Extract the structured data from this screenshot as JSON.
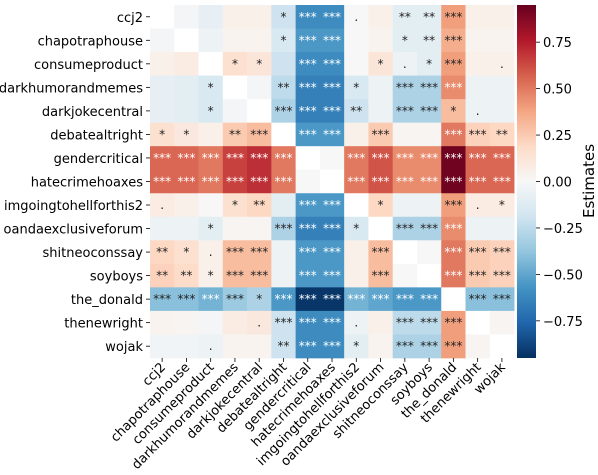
{
  "chart_data": {
    "type": "heatmap",
    "title": "",
    "xlabel": "",
    "ylabel": "",
    "rows": [
      "ccj2",
      "chapotraphouse",
      "consumeproduct",
      "darkhumorandmemes",
      "darkjokecentral",
      "debatealtright",
      "gendercritical",
      "hatecrimehoaxes",
      "imgoingtohellforthis2",
      "oandaexclusiveforum",
      "shitneoconssay",
      "soyboys",
      "the_donald",
      "thenewright",
      "wojak"
    ],
    "columns": [
      "ccj2",
      "chapotraphouse",
      "consumeproduct",
      "darkhumorandmemes",
      "darkjokecentral",
      "debatealtright",
      "gendercritical",
      "hatecrimehoaxes",
      "imgoingtohellforthis2",
      "oandaexclusiveforum",
      "shitneoconssay",
      "soyboys",
      "the_donald",
      "thenewright",
      "wojak"
    ],
    "values": [
      [
        null,
        -0.02,
        -0.08,
        0.05,
        0.05,
        -0.2,
        -0.6,
        -0.6,
        0.0,
        0.05,
        -0.1,
        -0.1,
        0.4,
        0.05,
        0.05
      ],
      [
        -0.02,
        null,
        -0.05,
        0.03,
        0.03,
        -0.15,
        -0.55,
        -0.55,
        0.0,
        0.03,
        -0.1,
        -0.1,
        0.35,
        0.03,
        0.03
      ],
      [
        0.05,
        0.08,
        null,
        0.15,
        0.12,
        -0.2,
        -0.6,
        -0.6,
        0.0,
        0.12,
        -0.05,
        -0.1,
        0.4,
        0.05,
        0.05
      ],
      [
        -0.08,
        -0.1,
        -0.15,
        null,
        -0.02,
        -0.25,
        -0.65,
        -0.65,
        -0.15,
        -0.05,
        -0.3,
        -0.3,
        0.45,
        -0.05,
        -0.05
      ],
      [
        -0.08,
        -0.1,
        -0.15,
        -0.02,
        null,
        -0.3,
        -0.65,
        -0.65,
        -0.2,
        -0.05,
        -0.3,
        -0.3,
        0.3,
        -0.05,
        -0.05
      ],
      [
        0.15,
        0.1,
        0.05,
        0.25,
        0.3,
        null,
        -0.55,
        -0.55,
        0.05,
        0.25,
        0.02,
        0.02,
        0.5,
        0.22,
        0.2
      ],
      [
        0.55,
        0.55,
        0.5,
        0.65,
        0.7,
        0.5,
        null,
        0.0,
        0.5,
        0.6,
        0.45,
        0.45,
        0.93,
        0.55,
        0.55
      ],
      [
        0.55,
        0.55,
        0.5,
        0.65,
        0.7,
        0.5,
        0.0,
        null,
        0.5,
        0.6,
        0.45,
        0.45,
        0.93,
        0.55,
        0.55
      ],
      [
        0.08,
        0.05,
        0.0,
        0.15,
        0.2,
        -0.1,
        -0.55,
        -0.55,
        null,
        0.2,
        -0.05,
        -0.05,
        0.4,
        0.08,
        0.08
      ],
      [
        -0.05,
        -0.05,
        -0.1,
        0.02,
        0.02,
        -0.3,
        -0.65,
        -0.65,
        -0.15,
        null,
        -0.3,
        -0.3,
        0.45,
        -0.05,
        -0.05
      ],
      [
        0.2,
        0.15,
        0.05,
        0.3,
        0.3,
        -0.05,
        -0.55,
        -0.55,
        0.05,
        0.3,
        null,
        0.0,
        0.5,
        0.25,
        0.22
      ],
      [
        0.22,
        0.18,
        0.05,
        0.3,
        0.3,
        -0.05,
        -0.55,
        -0.55,
        0.05,
        0.3,
        0.0,
        null,
        0.5,
        0.25,
        0.22
      ],
      [
        -0.4,
        -0.4,
        -0.45,
        -0.35,
        -0.3,
        -0.55,
        -0.93,
        -0.93,
        -0.45,
        -0.5,
        -0.55,
        -0.55,
        null,
        -0.4,
        -0.4
      ],
      [
        0.03,
        0.02,
        -0.02,
        0.08,
        0.1,
        -0.2,
        -0.6,
        -0.6,
        -0.05,
        0.05,
        -0.25,
        -0.25,
        0.4,
        null,
        0.02
      ],
      [
        -0.03,
        -0.03,
        -0.05,
        0.03,
        0.03,
        -0.2,
        -0.6,
        -0.6,
        -0.1,
        0.03,
        -0.3,
        -0.3,
        0.4,
        0.02,
        null
      ]
    ],
    "annotations": [
      [
        "",
        "",
        "",
        "",
        "",
        "*",
        "***",
        "***",
        ".",
        "",
        "**",
        "**",
        "***",
        "",
        ""
      ],
      [
        "",
        "",
        "",
        "",
        "",
        "*",
        "***",
        "***",
        "",
        "",
        "*",
        "**",
        "***",
        "",
        ""
      ],
      [
        "",
        "",
        "",
        "*",
        "*",
        "",
        "***",
        "***",
        "",
        "*",
        ".",
        "*",
        "***",
        "",
        "."
      ],
      [
        "",
        "",
        "*",
        "",
        "",
        "**",
        "***",
        "***",
        "*",
        "",
        "***",
        "***",
        "***",
        "",
        ""
      ],
      [
        "",
        "",
        "*",
        "",
        "",
        "***",
        "***",
        "***",
        "**",
        "",
        "***",
        "***",
        "*",
        ".",
        ""
      ],
      [
        "*",
        "*",
        "",
        "**",
        "***",
        "",
        "***",
        "***",
        "",
        "***",
        "",
        "",
        "***",
        "***",
        "**"
      ],
      [
        "***",
        "***",
        "***",
        "***",
        "***",
        "***",
        "",
        "",
        "***",
        "***",
        "***",
        "***",
        "***",
        "***",
        "***"
      ],
      [
        "***",
        "***",
        "***",
        "***",
        "***",
        "***",
        "",
        "",
        "***",
        "***",
        "***",
        "***",
        "***",
        "***",
        "***"
      ],
      [
        ".",
        "",
        "",
        "*",
        "**",
        "",
        "***",
        "***",
        "",
        "*",
        "",
        "",
        "***",
        ".",
        "*"
      ],
      [
        "",
        "",
        "*",
        "",
        "",
        "***",
        "***",
        "***",
        "*",
        "",
        "***",
        "***",
        "***",
        "",
        ""
      ],
      [
        "**",
        "*",
        ".",
        "***",
        "***",
        "",
        "***",
        "***",
        "",
        "***",
        "",
        "",
        "***",
        "***",
        "***"
      ],
      [
        "**",
        "**",
        "*",
        "***",
        "***",
        "",
        "***",
        "***",
        "",
        "***",
        "",
        "",
        "***",
        "***",
        "***"
      ],
      [
        "***",
        "***",
        "***",
        "***",
        "*",
        "***",
        "***",
        "***",
        "***",
        "***",
        "***",
        "***",
        "",
        "***",
        "***"
      ],
      [
        "",
        "",
        "",
        "",
        ".",
        "***",
        "***",
        "***",
        ".",
        "",
        "***",
        "***",
        "***",
        "",
        ""
      ],
      [
        "",
        "",
        ".",
        "",
        "",
        "**",
        "***",
        "***",
        "*",
        "",
        "***",
        "***",
        "***",
        "",
        ""
      ]
    ],
    "colorbar": {
      "label": "Estimates",
      "range": [
        -0.95,
        0.95
      ],
      "ticks": [
        0.75,
        0.5,
        0.25,
        0.0,
        -0.25,
        -0.5,
        -0.75
      ],
      "tick_labels": [
        "0.75",
        "0.50",
        "0.25",
        "0.00",
        "−0.25",
        "−0.50",
        "−0.75"
      ]
    },
    "colormap": [
      "#053061",
      "#2166ac",
      "#4393c3",
      "#92c5de",
      "#d1e5f0",
      "#f7f7f7",
      "#fddbc7",
      "#f4a582",
      "#d6604d",
      "#b2182b",
      "#67001f"
    ],
    "grid": false,
    "legend": "none"
  }
}
